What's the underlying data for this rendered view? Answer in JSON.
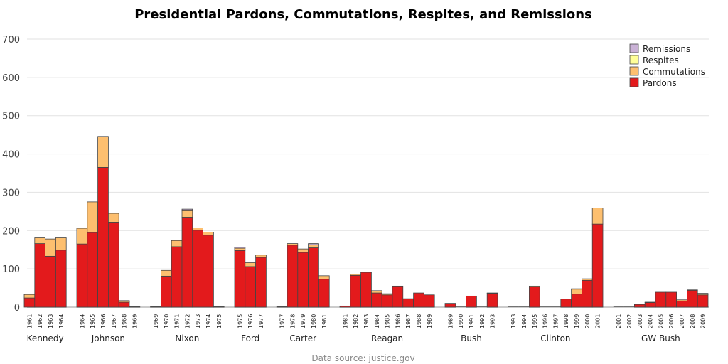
{
  "chart_data": {
    "type": "bar",
    "stacked": true,
    "title": "Presidential Pardons, Commutations, Respites, and Remissions",
    "source": "Data source: justice.gov",
    "ylim": [
      0,
      700
    ],
    "yticks": [
      0,
      100,
      200,
      300,
      400,
      500,
      600,
      700
    ],
    "grid": true,
    "legend_position": "top-right",
    "series_names": [
      "Remissions",
      "Respites",
      "Commutations",
      "Pardons"
    ],
    "colors": {
      "Pardons": "#e31a1c",
      "Commutations": "#fdbf6f",
      "Respites": "#ffff99",
      "Remissions": "#cab2d6"
    },
    "groups": [
      {
        "president": "Kennedy",
        "years": [
          "1961",
          "1962",
          "1963",
          "1964"
        ],
        "pardons": [
          24,
          166,
          133,
          149
        ],
        "commutations": [
          9,
          15,
          45,
          32
        ],
        "respites": [
          0,
          0,
          0,
          0
        ],
        "remissions": [
          0,
          0,
          0,
          0
        ]
      },
      {
        "president": "Johnson",
        "years": [
          "1964",
          "1965",
          "1966",
          "1967",
          "1968",
          "1969"
        ],
        "pardons": [
          165,
          195,
          365,
          222,
          13,
          1
        ],
        "commutations": [
          41,
          80,
          81,
          23,
          4,
          0
        ],
        "respites": [
          0,
          0,
          0,
          0,
          0,
          0
        ],
        "remissions": [
          0,
          0,
          0,
          0,
          0,
          0
        ]
      },
      {
        "president": "Nixon",
        "years": [
          "1969",
          "1970",
          "1971",
          "1972",
          "1973",
          "1974",
          "1975"
        ],
        "pardons": [
          1,
          81,
          158,
          235,
          201,
          188,
          1
        ],
        "commutations": [
          0,
          15,
          16,
          17,
          6,
          8,
          0
        ],
        "respites": [
          0,
          0,
          0,
          0,
          0,
          0,
          0
        ],
        "remissions": [
          0,
          0,
          0,
          4,
          0,
          0,
          0
        ]
      },
      {
        "president": "Ford",
        "years": [
          "1975",
          "1976",
          "1977"
        ],
        "pardons": [
          148,
          106,
          130
        ],
        "commutations": [
          6,
          10,
          6
        ],
        "respites": [
          0,
          0,
          0
        ],
        "remissions": [
          3,
          0,
          0
        ]
      },
      {
        "president": "Carter",
        "years": [
          "1977",
          "1978",
          "1979",
          "1980",
          "1981"
        ],
        "pardons": [
          1,
          162,
          143,
          155,
          73
        ],
        "commutations": [
          0,
          4,
          9,
          8,
          9
        ],
        "respites": [
          0,
          0,
          0,
          0,
          0
        ],
        "remissions": [
          0,
          0,
          0,
          3,
          0
        ]
      },
      {
        "president": "Reagan",
        "years": [
          "1981",
          "1982",
          "1983",
          "1984",
          "1985",
          "1986",
          "1987",
          "1988",
          "1989"
        ],
        "pardons": [
          3,
          83,
          91,
          37,
          32,
          55,
          22,
          37,
          32
        ],
        "commutations": [
          0,
          3,
          1,
          6,
          3,
          0,
          0,
          0,
          0
        ],
        "respites": [
          0,
          0,
          0,
          0,
          0,
          0,
          0,
          0,
          0
        ],
        "remissions": [
          0,
          0,
          0,
          0,
          0,
          0,
          0,
          0,
          0
        ]
      },
      {
        "president": "Bush",
        "years": [
          "1989",
          "1990",
          "1991",
          "1992",
          "1993"
        ],
        "pardons": [
          10,
          0,
          29,
          0,
          36
        ],
        "commutations": [
          0,
          0,
          0,
          0,
          1
        ],
        "respites": [
          0,
          0,
          0,
          0,
          0
        ],
        "remissions": [
          0,
          0,
          0,
          0,
          0
        ]
      },
      {
        "president": "Clinton",
        "years": [
          "1993",
          "1994",
          "1995",
          "1996",
          "1997",
          "1998",
          "1999",
          "2000",
          "2001"
        ],
        "pardons": [
          0,
          0,
          53,
          0,
          0,
          21,
          34,
          70,
          217
        ],
        "commutations": [
          0,
          0,
          2,
          0,
          0,
          0,
          13,
          4,
          42
        ],
        "respites": [
          0,
          0,
          0,
          0,
          0,
          0,
          0,
          0,
          0
        ],
        "remissions": [
          0,
          0,
          0,
          0,
          0,
          0,
          1,
          0,
          0
        ]
      },
      {
        "president": "GW Bush",
        "years": [
          "2001",
          "2002",
          "2003",
          "2004",
          "2005",
          "2006",
          "2007",
          "2008",
          "2009"
        ],
        "pardons": [
          0,
          0,
          7,
          12,
          39,
          39,
          16,
          44,
          32
        ],
        "commutations": [
          0,
          0,
          0,
          1,
          0,
          0,
          3,
          1,
          4
        ],
        "respites": [
          0,
          0,
          0,
          0,
          0,
          0,
          0,
          0,
          0
        ],
        "remissions": [
          0,
          0,
          0,
          0,
          0,
          0,
          0,
          0,
          0
        ]
      }
    ]
  }
}
